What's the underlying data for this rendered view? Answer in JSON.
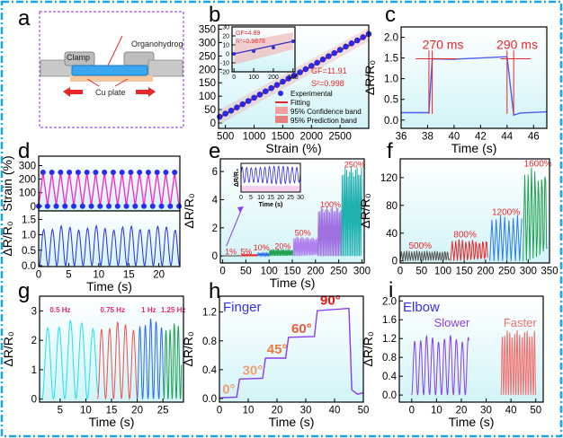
{
  "panel_labels": [
    "a",
    "b",
    "c",
    "d",
    "e",
    "f",
    "g",
    "h",
    "i"
  ],
  "colors": {
    "border": "#1aa3e8",
    "accent_red": "#e8262a",
    "purple": "#8a3cf0",
    "blue": "#2a2af0",
    "magenta": "#ff22cc",
    "cu": "#f4c9a0",
    "gel": "#3aa8f0"
  },
  "diagram_a": {
    "clamp": "Clamp",
    "organohydrogel": "Organohydrogel",
    "cu_plate": "Cu plate"
  },
  "chart_data": [
    {
      "id": "b",
      "type": "scatter",
      "xlabel": "Strain (%)",
      "ylabel": "",
      "xlim": [
        380,
        3000
      ],
      "ylim": [
        -20,
        365
      ],
      "xticks": [
        500,
        1000,
        1500,
        2000,
        2500
      ],
      "yticks": [
        0,
        50,
        100,
        150,
        200,
        250,
        300,
        350
      ],
      "series": [
        {
          "name": "Experimental",
          "kind": "points",
          "color": "#2a2af0",
          "x": [
            400,
            500,
            600,
            700,
            800,
            900,
            1000,
            1100,
            1200,
            1300,
            1400,
            1500,
            1600,
            1700,
            1800,
            1900,
            2000,
            2100,
            2200,
            2300,
            2400,
            2500,
            2600,
            2700,
            2800,
            2900,
            3000
          ],
          "y": [
            23,
            35,
            46,
            58,
            70,
            82,
            94,
            106,
            118,
            130,
            142,
            154,
            166,
            177,
            189,
            201,
            213,
            225,
            237,
            249,
            261,
            273,
            285,
            297,
            308,
            320,
            332
          ]
        },
        {
          "name": "Fitting",
          "kind": "line",
          "color": "#e8262a",
          "x": [
            400,
            3000
          ],
          "y": [
            22,
            330
          ]
        }
      ],
      "legend": [
        "Experimental",
        "Fitting",
        "95% Confidence band",
        "95% Prediction band"
      ],
      "legend_position": "bottom-right",
      "annotations": [
        "GF=11.91",
        "S²=0.998"
      ],
      "inset": {
        "xlim": [
          -10,
          310
        ],
        "ylim": [
          -20,
          30
        ],
        "xticks": [
          0,
          100,
          200,
          300
        ],
        "yticks": [
          -20,
          -10,
          0,
          10,
          20,
          30
        ],
        "x": [
          0,
          100,
          200,
          300
        ],
        "y": [
          0,
          3,
          7,
          14
        ],
        "annotations": [
          "GF=4.89",
          "R²=0.9878"
        ]
      }
    },
    {
      "id": "c",
      "type": "line",
      "xlabel": "Time (s)",
      "ylabel": "ΔR/R₀",
      "xlim": [
        36,
        47
      ],
      "ylim": [
        -0.2,
        2.25
      ],
      "xticks": [
        36,
        38,
        40,
        42,
        44,
        46
      ],
      "yticks": [
        0.0,
        0.5,
        1.0,
        1.5,
        2.0
      ],
      "series": [
        {
          "kind": "line",
          "color": "#4a5cf0",
          "x": [
            36,
            38.1,
            38.35,
            40,
            44,
            44.5,
            45,
            47
          ],
          "y": [
            0.18,
            0.18,
            1.48,
            1.47,
            1.53,
            0.12,
            0.17,
            0.2
          ]
        }
      ],
      "annotations": [
        "270 ms",
        "290 ms"
      ]
    },
    {
      "id": "d_top",
      "type": "line",
      "xlabel": "",
      "ylabel": "Strain (%)",
      "xlim": [
        0,
        23.5
      ],
      "ylim": [
        -15,
        330
      ],
      "xticks": [],
      "yticks": [
        0,
        100,
        200,
        300
      ],
      "wave": {
        "shape": "triangle",
        "t0": 0,
        "t1": 23.5,
        "period": 1.46,
        "min": 0,
        "max": 250,
        "color": "#ff22cc",
        "markers": "#2a2af0"
      }
    },
    {
      "id": "d_bottom",
      "type": "line",
      "xlabel": "Time (s)",
      "ylabel": "ΔR/R₀",
      "xlim": [
        0,
        23.5
      ],
      "ylim": [
        -0.03,
        1.6
      ],
      "xticks": [
        0,
        5,
        10,
        15,
        20
      ],
      "yticks": [
        0.0,
        0.5,
        1.0,
        1.5
      ],
      "segments": [
        {
          "t0": 0.1,
          "t1": 23.5,
          "period": 1.46,
          "peak": 1.22,
          "color": "#2a2af0"
        }
      ]
    },
    {
      "id": "e",
      "type": "line",
      "xlabel": "Time (s)",
      "ylabel": "ΔR/R₀",
      "xlim": [
        -5,
        305
      ],
      "ylim": [
        -0.5,
        6.9
      ],
      "xticks": [
        0,
        50,
        100,
        150,
        200,
        250,
        300
      ],
      "yticks": [
        0,
        2,
        4,
        6
      ],
      "segments": [
        {
          "label": "1%",
          "t0": 0,
          "t1": 40,
          "period": 3,
          "peak": 0.02,
          "color": "#555555"
        },
        {
          "label": "5%",
          "t0": 40,
          "t1": 75,
          "period": 3,
          "peak": 0.1,
          "color": "#e8262a"
        },
        {
          "label": "10%",
          "t0": 75,
          "t1": 100,
          "period": 3,
          "peak": 0.2,
          "color": "#2a6af0"
        },
        {
          "label": "20%",
          "t0": 100,
          "t1": 152,
          "period": 3,
          "peak": 0.45,
          "color": "#22a050"
        },
        {
          "label": "50%",
          "t0": 152,
          "t1": 205,
          "period": 3,
          "peak": 1.3,
          "color": "#b080f0"
        },
        {
          "label": "100%",
          "t0": 205,
          "t1": 256,
          "period": 3,
          "peak": 3.3,
          "color": "#a070e0"
        },
        {
          "label": "250%",
          "t0": 256,
          "t1": 300,
          "period": 3.2,
          "peak": 6.0,
          "color": "#20b0b0"
        }
      ],
      "inset": {
        "xlabel": "Time (s)",
        "ylabel": "ΔR/R₀",
        "xlim": [
          0,
          30
        ],
        "xticks": [
          0,
          5,
          10,
          15,
          20,
          25,
          30
        ],
        "period": 2.3,
        "color": "#2a2af0"
      }
    },
    {
      "id": "f",
      "type": "line",
      "xlabel": "",
      "ylabel": "ΔR/R₀",
      "xlim": [
        0,
        350
      ],
      "ylim": [
        -3,
        147
      ],
      "xticks": [
        0,
        50,
        100,
        150,
        200,
        250,
        300,
        350
      ],
      "yticks": [
        0,
        40,
        80,
        120
      ],
      "segments": [
        {
          "label": "500%",
          "t0": 0,
          "t1": 115,
          "period": 6,
          "peak": 14,
          "color": "#555555"
        },
        {
          "label": "800%",
          "t0": 118,
          "t1": 205,
          "period": 8,
          "peak": 30,
          "color": "#e8262a"
        },
        {
          "label": "1200%",
          "t0": 210,
          "t1": 285,
          "period": 10,
          "peak": 62,
          "color": "#2a7af0"
        },
        {
          "label": "1600%",
          "t0": 288,
          "t1": 345,
          "period": 8,
          "peak": 130,
          "color": "#22a050"
        }
      ]
    },
    {
      "id": "g",
      "type": "line",
      "xlabel": "Time (s)",
      "ylabel": "ΔR/R₀",
      "xlim": [
        1,
        29
      ],
      "ylim": [
        -0.1,
        3.5
      ],
      "xticks": [
        5,
        10,
        15,
        20,
        25
      ],
      "yticks": [
        0,
        1,
        2,
        3
      ],
      "segments": [
        {
          "label": "0.5 Hz",
          "t0": 1.5,
          "t1": 12.3,
          "period": 2.2,
          "peak": 2.55,
          "color": "#20e0f0"
        },
        {
          "label": "0.75 Hz",
          "t0": 12.3,
          "t1": 20,
          "period": 1.55,
          "peak": 2.5,
          "color": "#f05050"
        },
        {
          "label": "1 Hz",
          "t0": 20,
          "t1": 25.2,
          "period": 1.05,
          "peak": 2.6,
          "color": "#2a6af0"
        },
        {
          "label": "1.25 Hz",
          "t0": 25.2,
          "t1": 28.6,
          "period": 0.8,
          "peak": 2.45,
          "color": "#20a050"
        }
      ]
    },
    {
      "id": "h",
      "type": "line",
      "xlabel": "Time (s)",
      "ylabel": "ΔR/R₀",
      "xlim": [
        0,
        50
      ],
      "ylim": [
        -0.05,
        1.42
      ],
      "xticks": [
        0,
        10,
        20,
        30,
        40,
        50
      ],
      "yticks": [
        0.0,
        0.4,
        0.8,
        1.2
      ],
      "title": "Finger",
      "series": [
        {
          "kind": "line",
          "color": "#8a3cf0",
          "x": [
            0,
            6,
            7,
            15,
            16,
            23,
            24,
            33,
            34,
            45,
            46,
            48,
            50
          ],
          "y": [
            0.01,
            0.02,
            0.27,
            0.28,
            0.56,
            0.56,
            0.85,
            0.86,
            1.22,
            1.25,
            0.12,
            0.06,
            0.08
          ]
        }
      ],
      "annotations": [
        {
          "text": "0°",
          "color": "#f0a070"
        },
        {
          "text": "30°",
          "color": "#f0a070"
        },
        {
          "text": "45°",
          "color": "#f07840"
        },
        {
          "text": "60°",
          "color": "#f05a3a"
        },
        {
          "text": "90°",
          "color": "#ee1010"
        }
      ]
    },
    {
      "id": "i",
      "type": "line",
      "xlabel": "Time (s)",
      "ylabel": "ΔR/R₀",
      "xlim": [
        -5,
        53
      ],
      "ylim": [
        -0.15,
        2.1
      ],
      "xticks": [
        0,
        10,
        20,
        30,
        40,
        50
      ],
      "yticks": [
        0.0,
        0.4,
        0.8,
        1.2,
        1.6,
        2.0
      ],
      "title": "Elbow",
      "segments": [
        {
          "label": "Slower",
          "t0": 0,
          "t1": 23,
          "period": 2.4,
          "peak": 1.2,
          "color": "#8a3cf0"
        },
        {
          "label": "Faster",
          "t0": 36,
          "t1": 50,
          "period": 1.0,
          "peak": 1.3,
          "color": "#f07070"
        }
      ]
    }
  ]
}
